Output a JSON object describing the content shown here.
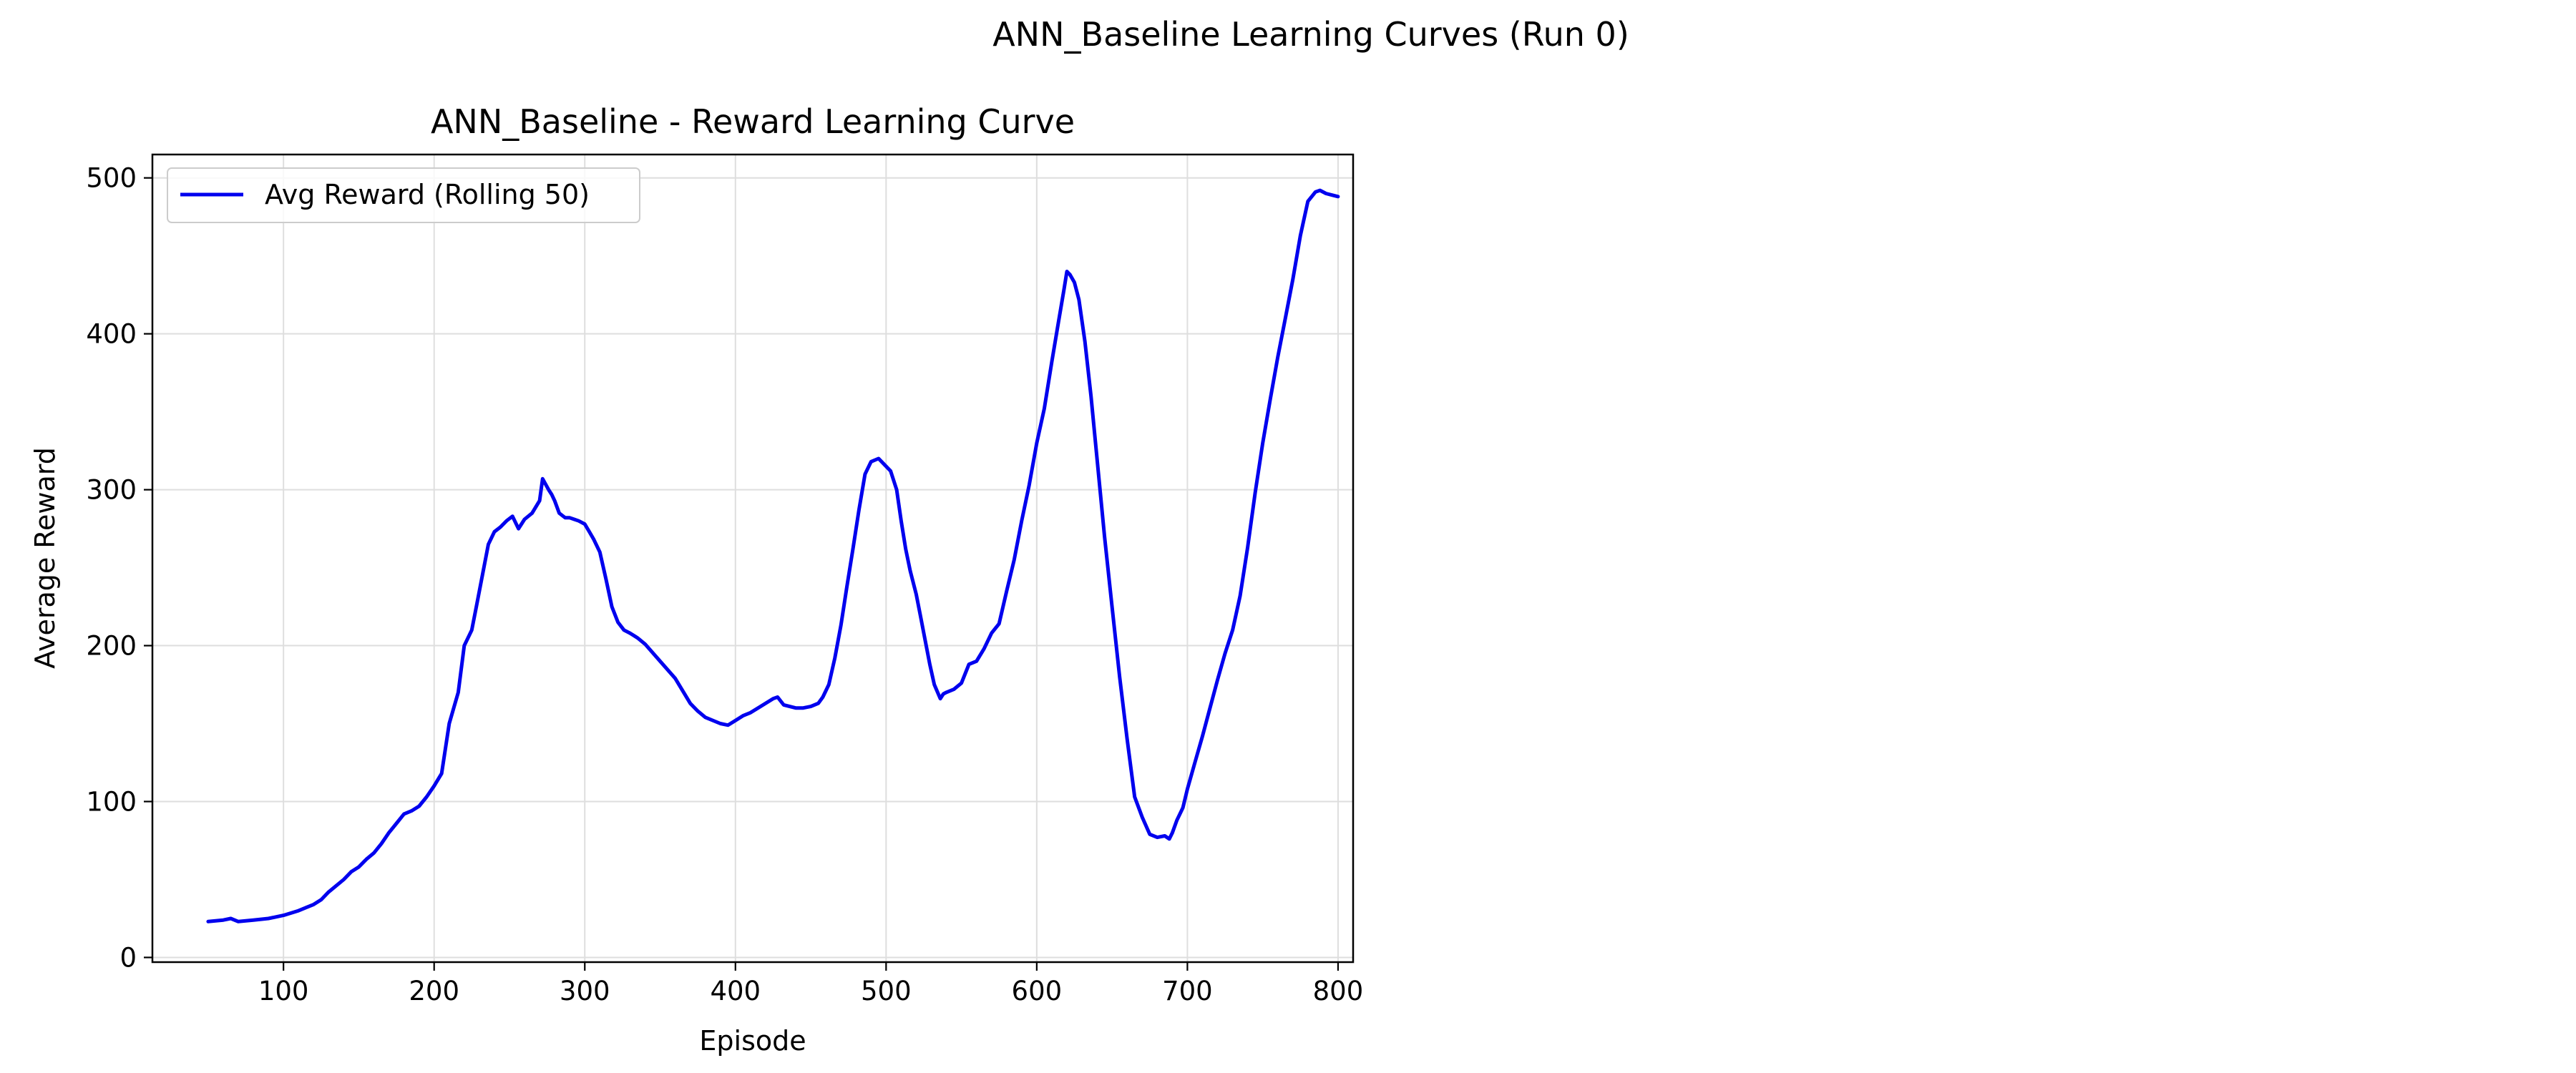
{
  "figure": {
    "suptitle": "ANN_Baseline Learning Curves (Run 0)"
  },
  "chart_data": {
    "type": "line",
    "title": "ANN_Baseline - Reward Learning Curve",
    "xlabel": "Episode",
    "ylabel": "Average Reward",
    "xlim": [
      13,
      810
    ],
    "ylim": [
      -3,
      515
    ],
    "xticks": [
      100,
      200,
      300,
      400,
      500,
      600,
      700,
      800
    ],
    "yticks": [
      0,
      100,
      200,
      300,
      400,
      500
    ],
    "grid": true,
    "legend": {
      "position": "upper-left",
      "entries": [
        "Avg Reward (Rolling 50)"
      ]
    },
    "series": [
      {
        "name": "Avg Reward (Rolling 50)",
        "color": "#0000ee",
        "x": [
          50,
          60,
          65,
          70,
          80,
          90,
          100,
          110,
          115,
          120,
          125,
          130,
          135,
          140,
          145,
          150,
          155,
          160,
          165,
          170,
          175,
          180,
          185,
          190,
          195,
          200,
          205,
          210,
          213,
          216,
          220,
          225,
          228,
          232,
          236,
          240,
          244,
          248,
          252,
          256,
          260,
          265,
          270,
          272,
          276,
          278,
          280,
          283,
          287,
          290,
          293,
          296,
          300,
          303,
          306,
          310,
          314,
          318,
          322,
          326,
          330,
          335,
          340,
          350,
          360,
          370,
          375,
          380,
          390,
          395,
          400,
          405,
          410,
          415,
          420,
          425,
          428,
          432,
          436,
          440,
          445,
          450,
          455,
          458,
          462,
          466,
          470,
          474,
          478,
          482,
          486,
          490,
          495,
          500,
          503,
          507,
          510,
          513,
          516,
          520,
          523,
          526,
          529,
          532,
          536,
          538,
          540,
          545,
          550,
          555,
          560,
          565,
          570,
          575,
          580,
          585,
          590,
          595,
          600,
          605,
          610,
          614,
          618,
          620,
          622,
          625,
          628,
          632,
          636,
          640,
          645,
          650,
          655,
          660,
          665,
          670,
          675,
          680,
          685,
          688,
          690,
          693,
          697,
          700,
          705,
          710,
          715,
          720,
          725,
          730,
          735,
          740,
          745,
          750,
          755,
          760,
          765,
          770,
          775,
          780,
          785,
          788,
          792,
          796,
          800
        ],
        "y": [
          23,
          24,
          25,
          23,
          24,
          25,
          27,
          30,
          32,
          34,
          37,
          42,
          46,
          50,
          55,
          58,
          63,
          67,
          73,
          80,
          86,
          92,
          94,
          97,
          103,
          110,
          118,
          150,
          160,
          170,
          200,
          210,
          225,
          245,
          265,
          273,
          276,
          280,
          283,
          275,
          281,
          285,
          293,
          307,
          300,
          297,
          293,
          285,
          282,
          282,
          281,
          280,
          278,
          273,
          268,
          260,
          243,
          225,
          215,
          210,
          208,
          205,
          201,
          190,
          179,
          163,
          158,
          154,
          150,
          149,
          152,
          155,
          157,
          160,
          163,
          166,
          167,
          162,
          161,
          160,
          160,
          161,
          163,
          167,
          175,
          192,
          213,
          238,
          262,
          287,
          310,
          318,
          320,
          315,
          312,
          300,
          280,
          262,
          248,
          233,
          218,
          203,
          188,
          175,
          166,
          169,
          170,
          172,
          176,
          188,
          190,
          198,
          208,
          214,
          235,
          255,
          280,
          303,
          330,
          352,
          382,
          405,
          428,
          440,
          438,
          433,
          422,
          395,
          360,
          320,
          270,
          225,
          180,
          140,
          103,
          90,
          79,
          77,
          78,
          76,
          80,
          88,
          96,
          108,
          125,
          142,
          160,
          178,
          195,
          210,
          232,
          263,
          298,
          330,
          358,
          385,
          410,
          435,
          463,
          485,
          491,
          492,
          490,
          489,
          488
        ]
      }
    ]
  }
}
